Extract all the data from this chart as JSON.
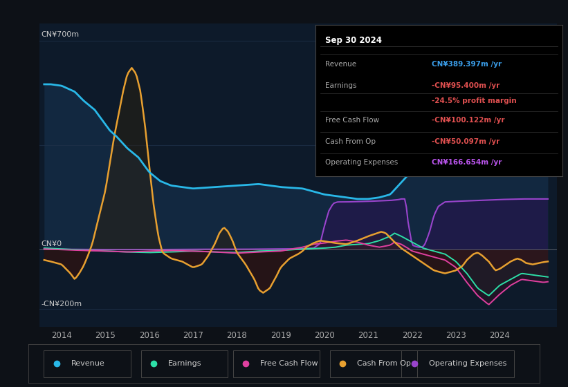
{
  "bg_color": "#0d1117",
  "plot_bg_color": "#0d1a2a",
  "title_box": {
    "date": "Sep 30 2024",
    "rows": [
      {
        "label": "Revenue",
        "value": "CN¥389.397m /yr",
        "value_color": "#3a9de8"
      },
      {
        "label": "Earnings",
        "value": "-CN¥95.400m /yr",
        "value_color": "#e05050"
      },
      {
        "label": "",
        "value": "-24.5% profit margin",
        "value_color": "#e05050"
      },
      {
        "label": "Free Cash Flow",
        "value": "-CN¥100.122m /yr",
        "value_color": "#e05050"
      },
      {
        "label": "Cash From Op",
        "value": "-CN¥50.097m /yr",
        "value_color": "#e05050"
      },
      {
        "label": "Operating Expenses",
        "value": "CN¥166.654m /yr",
        "value_color": "#bb55ee"
      }
    ]
  },
  "ylabel_top": "CN¥700m",
  "ylabel_zero": "CN¥0",
  "ylabel_bottom": "-CN¥200m",
  "xlim": [
    2013.5,
    2025.3
  ],
  "ylim": [
    -260,
    760
  ],
  "x_ticks": [
    2014,
    2015,
    2016,
    2017,
    2018,
    2019,
    2020,
    2021,
    2022,
    2023,
    2024
  ],
  "revenue_color": "#29b8e8",
  "earnings_color": "#2de0a8",
  "fcf_color": "#e040a0",
  "cashfromop_color": "#e8a030",
  "opex_color": "#9944cc",
  "legend": [
    {
      "label": "Revenue",
      "color": "#29b8e8",
      "marker": "o"
    },
    {
      "label": "Earnings",
      "color": "#2de0a8",
      "marker": "o"
    },
    {
      "label": "Free Cash Flow",
      "color": "#e040a0",
      "marker": "o"
    },
    {
      "label": "Cash From Op",
      "color": "#e8a030",
      "marker": "o"
    },
    {
      "label": "Operating Expenses",
      "color": "#9944cc",
      "marker": "o"
    }
  ]
}
